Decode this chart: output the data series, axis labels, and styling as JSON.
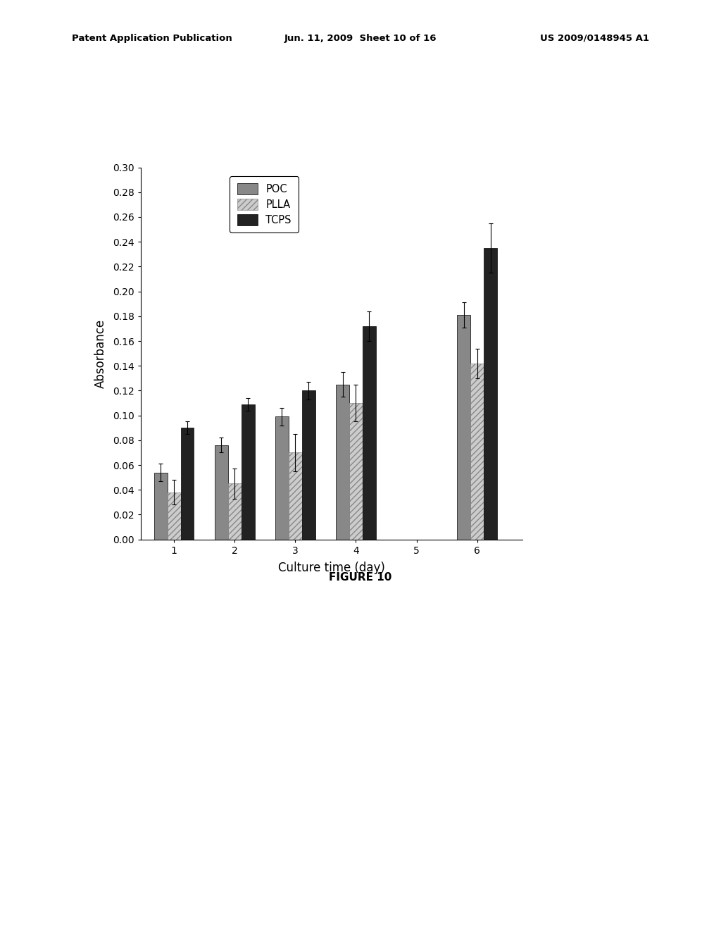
{
  "days": [
    1,
    2,
    3,
    4,
    6
  ],
  "POC_values": [
    0.054,
    0.076,
    0.099,
    0.125,
    0.181
  ],
  "PLLA_values": [
    0.038,
    0.045,
    0.07,
    0.11,
    0.142
  ],
  "TCPS_values": [
    0.09,
    0.109,
    0.12,
    0.172,
    0.235
  ],
  "POC_errors": [
    0.007,
    0.006,
    0.007,
    0.01,
    0.01
  ],
  "PLLA_errors": [
    0.01,
    0.012,
    0.015,
    0.015,
    0.012
  ],
  "TCPS_errors": [
    0.005,
    0.005,
    0.007,
    0.012,
    0.02
  ],
  "xlabel": "Culture time (day)",
  "ylabel": "Absorbance",
  "figure_label": "FIGURE 10",
  "ylim": [
    0.0,
    0.3
  ],
  "yticks": [
    0.0,
    0.02,
    0.04,
    0.06,
    0.08,
    0.1,
    0.12,
    0.14,
    0.16,
    0.18,
    0.2,
    0.22,
    0.24,
    0.26,
    0.28,
    0.3
  ],
  "xticks": [
    1,
    2,
    3,
    4,
    5,
    6
  ],
  "POC_color": "#888888",
  "PLLA_hatch": "////",
  "TCPS_color": "#222222",
  "bar_width": 0.22,
  "background_color": "#ffffff",
  "header_left": "Patent Application Publication",
  "header_mid": "Jun. 11, 2009  Sheet 10 of 16",
  "header_right": "US 2009/0148945 A1"
}
